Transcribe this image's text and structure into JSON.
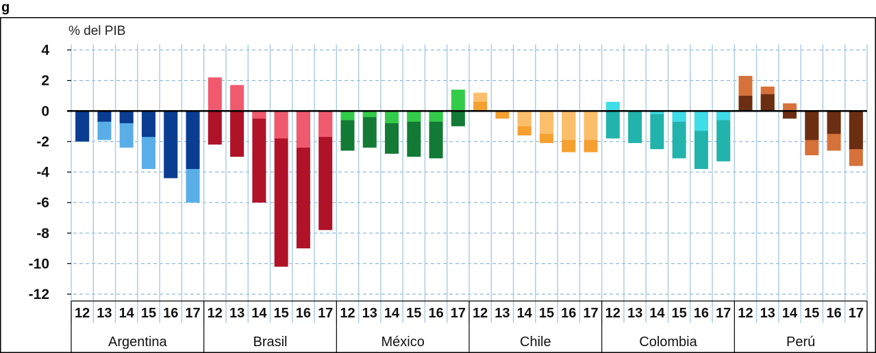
{
  "figure_label": "g",
  "chart_data": {
    "type": "bar",
    "ylabel": "% del PIB",
    "ylim": [
      -12,
      4
    ],
    "yticks": [
      4,
      2,
      0,
      -2,
      -4,
      -6,
      -8,
      -10,
      -12
    ],
    "grid": true,
    "groups": [
      {
        "name": "Argentina",
        "categories": [
          "12",
          "13",
          "14",
          "15",
          "16",
          "17"
        ],
        "colors": {
          "dark": "#0a3d91",
          "light": "#5aaee8"
        },
        "inner_values": [
          -2.0,
          -0.7,
          -0.8,
          -1.7,
          -4.4,
          -3.8
        ],
        "total_values": [
          -2.0,
          -1.9,
          -2.4,
          -3.8,
          -4.4,
          -6.0
        ]
      },
      {
        "name": "Brasil",
        "categories": [
          "12",
          "13",
          "14",
          "15",
          "16",
          "17"
        ],
        "colors": {
          "dark": "#b01228",
          "light": "#f05a6e"
        },
        "inner_values": [
          -2.2,
          -3.0,
          -6.0,
          -10.2,
          -9.0,
          -7.8
        ],
        "total_values": [
          2.2,
          1.7,
          -0.5,
          -1.8,
          -2.4,
          -1.7
        ]
      },
      {
        "name": "México",
        "categories": [
          "12",
          "13",
          "14",
          "15",
          "16",
          "17"
        ],
        "colors": {
          "dark": "#127a35",
          "light": "#33cc4a"
        },
        "inner_values": [
          -2.6,
          -2.4,
          -2.8,
          -3.0,
          -3.1,
          -1.0
        ],
        "total_values": [
          -0.6,
          -0.4,
          -0.8,
          -0.7,
          -0.7,
          1.4
        ]
      },
      {
        "name": "Chile",
        "categories": [
          "12",
          "13",
          "14",
          "15",
          "16",
          "17"
        ],
        "colors": {
          "dark": "#f5a030",
          "light": "#fbbf6c"
        },
        "inner_values": [
          0.6,
          -0.5,
          -1.6,
          -2.1,
          -2.7,
          -2.7
        ],
        "total_values": [
          1.2,
          0.0,
          -1.0,
          -1.5,
          -1.9,
          -1.9
        ]
      },
      {
        "name": "Colombia",
        "categories": [
          "12",
          "13",
          "14",
          "15",
          "16",
          "17"
        ],
        "colors": {
          "dark": "#22b3ad",
          "light": "#3fdde8"
        },
        "inner_values": [
          -1.8,
          -2.1,
          -2.5,
          -3.1,
          -3.8,
          -3.3
        ],
        "total_values": [
          0.6,
          0.0,
          -0.2,
          -0.7,
          -1.3,
          -0.6
        ]
      },
      {
        "name": "Perú",
        "categories": [
          "12",
          "13",
          "14",
          "15",
          "16",
          "17"
        ],
        "colors": {
          "dark": "#6b2e12",
          "light": "#d6713a"
        },
        "inner_values": [
          1.0,
          1.1,
          -0.5,
          -1.9,
          -1.5,
          -2.5
        ],
        "total_values": [
          2.3,
          1.6,
          0.5,
          -2.9,
          -2.6,
          -3.6
        ]
      }
    ]
  }
}
